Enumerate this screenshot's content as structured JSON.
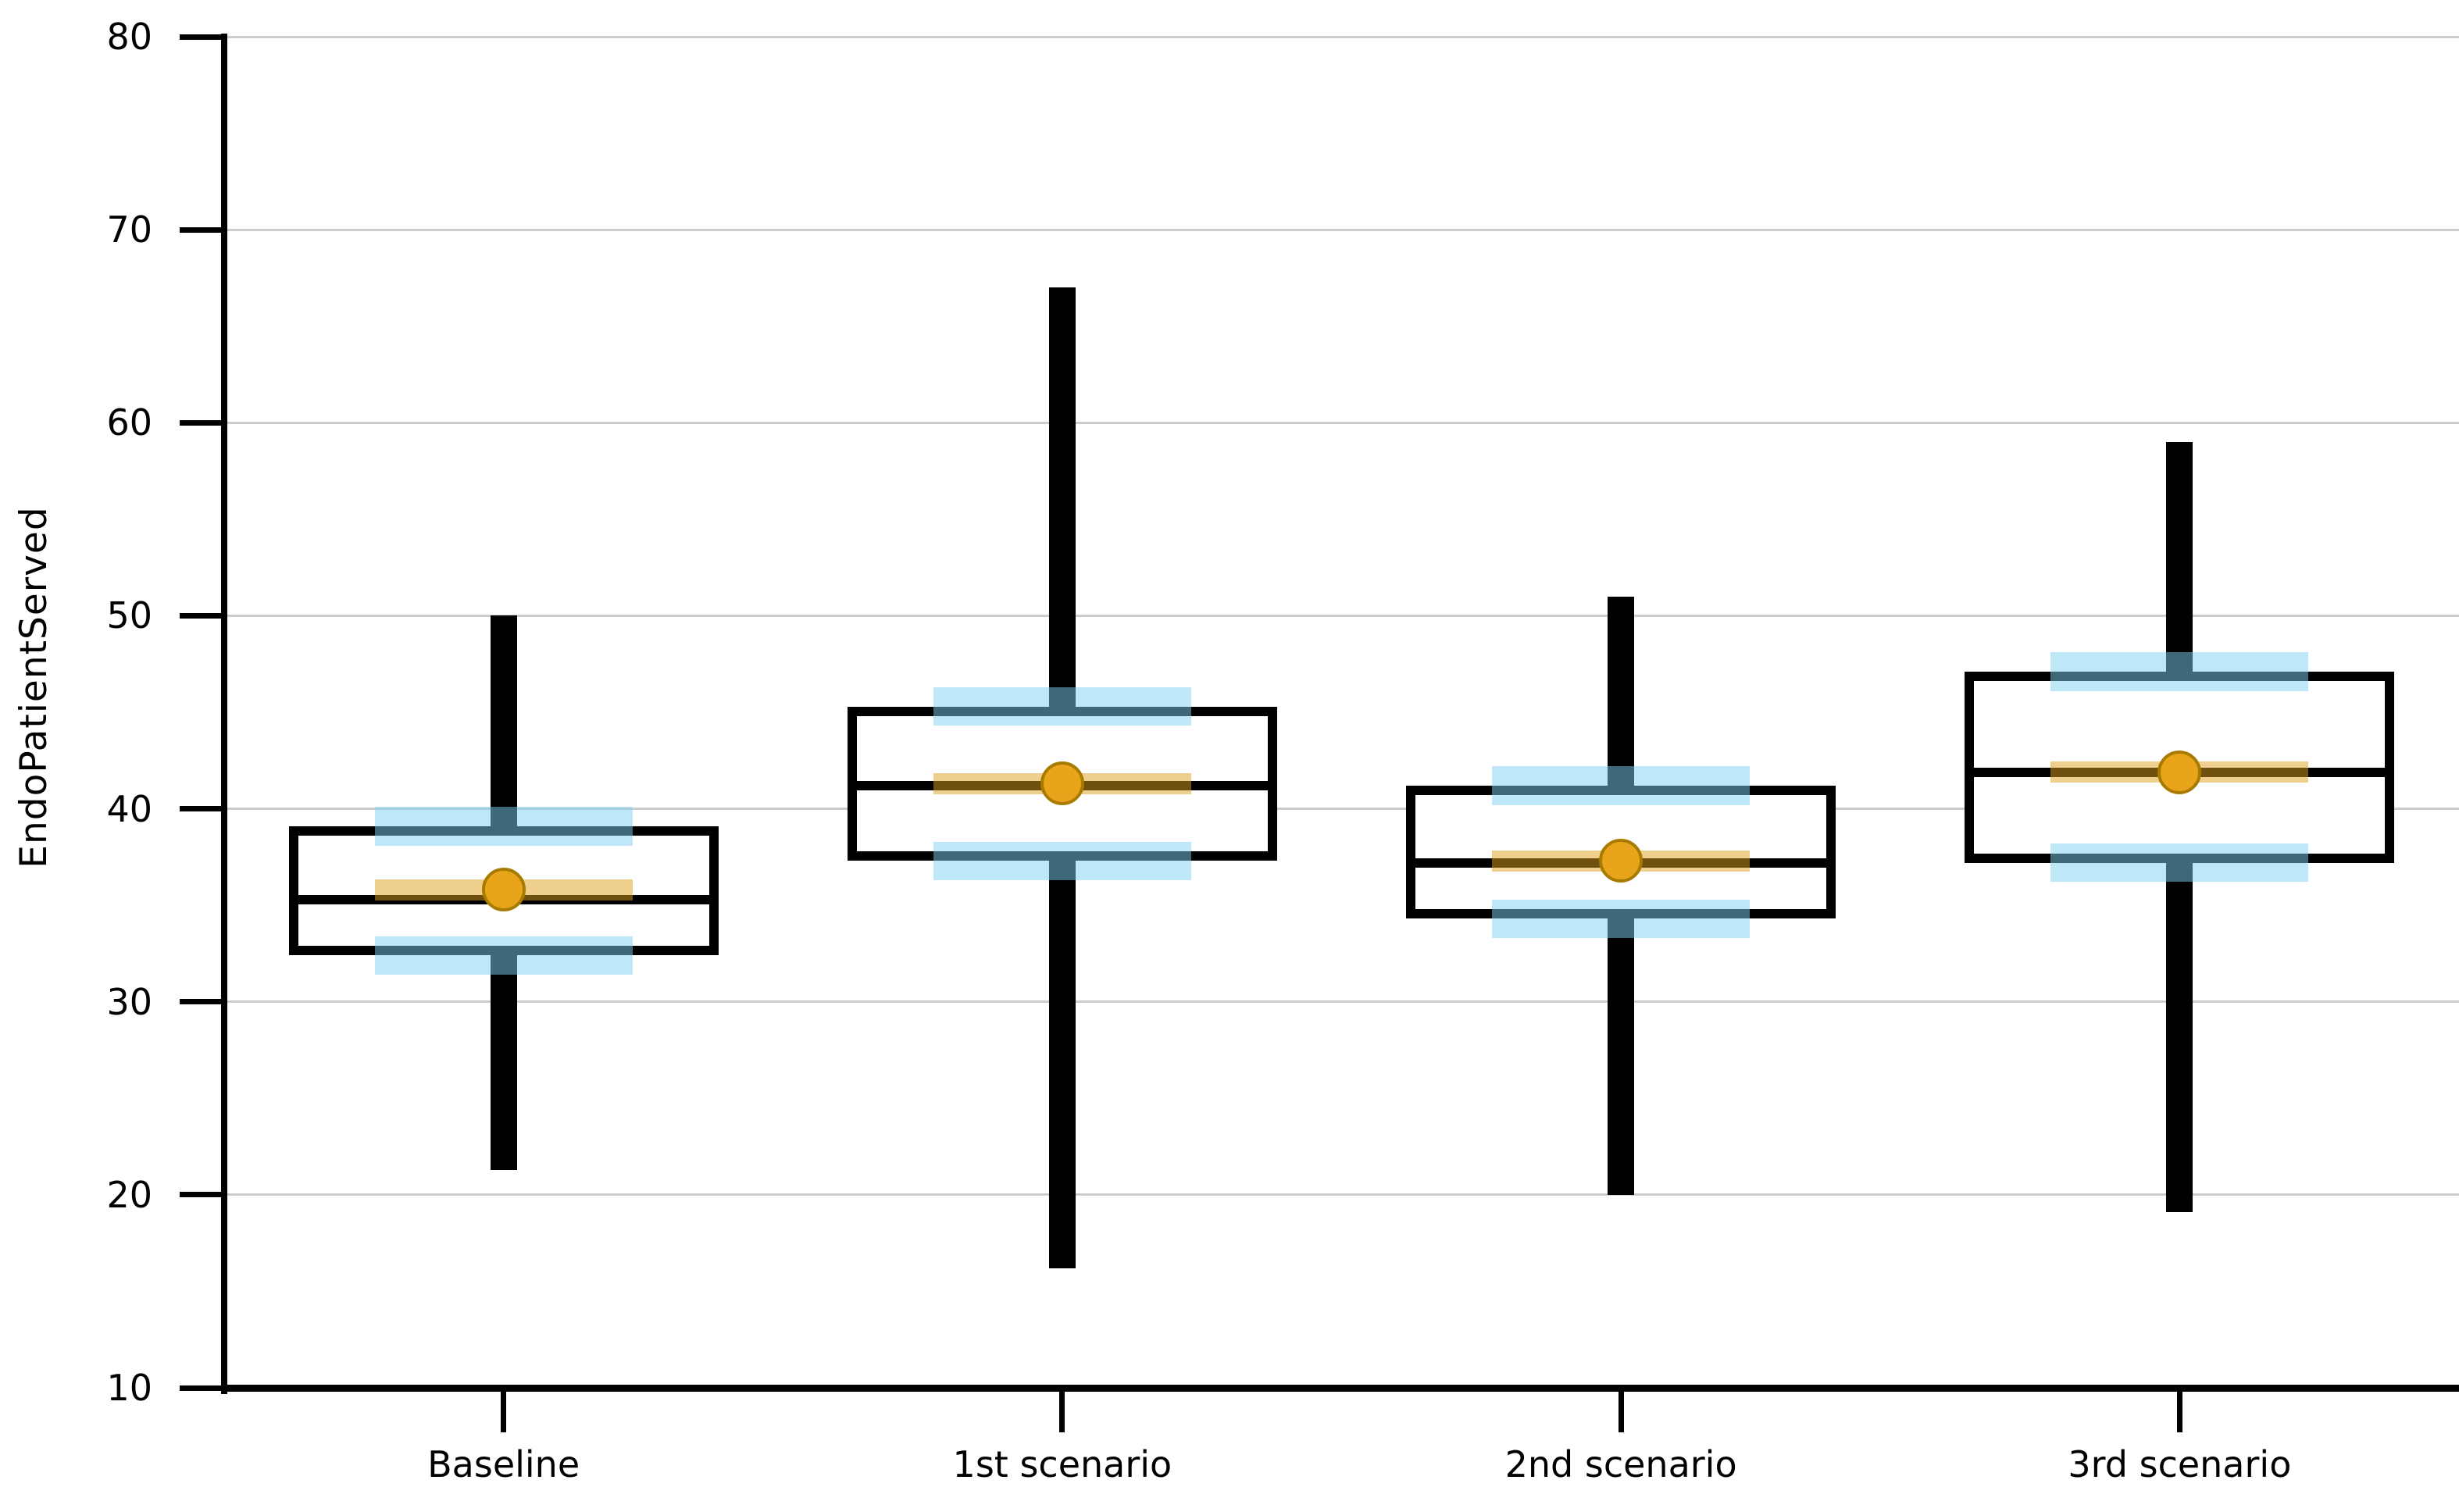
{
  "chart_data": {
    "type": "boxplot",
    "title": "",
    "ylabel": "EndoPatientServed",
    "xlabel": "",
    "ylim": [
      10,
      80
    ],
    "yticks": [
      10,
      20,
      30,
      40,
      50,
      60,
      70,
      80
    ],
    "grid": "horizontal-light-gray",
    "legend": "none",
    "categories": [
      "Baseline",
      "1st scenario",
      "2nd scenario",
      "3rd scenario"
    ],
    "series": [
      {
        "category": "Baseline",
        "whisker_low": 21.3,
        "q1": 32.4,
        "median": 35.3,
        "mean": 35.8,
        "q3": 39.1,
        "whisker_high": 50.0,
        "q1_ci": [
          31.4,
          33.4
        ],
        "q3_ci": [
          38.1,
          40.1
        ],
        "mean_ci": [
          35.25,
          36.35
        ]
      },
      {
        "category": "1st scenario",
        "whisker_low": 16.2,
        "q1": 37.3,
        "median": 41.2,
        "mean": 41.3,
        "q3": 45.3,
        "whisker_high": 67.0,
        "q1_ci": [
          36.3,
          38.3
        ],
        "q3_ci": [
          44.3,
          46.3
        ],
        "mean_ci": [
          40.75,
          41.85
        ]
      },
      {
        "category": "2nd scenario",
        "whisker_low": 20.0,
        "q1": 34.3,
        "median": 37.2,
        "mean": 37.3,
        "q3": 41.2,
        "whisker_high": 51.0,
        "q1_ci": [
          33.3,
          35.3
        ],
        "q3_ci": [
          40.2,
          42.2
        ],
        "mean_ci": [
          36.75,
          37.85
        ]
      },
      {
        "category": "3rd scenario",
        "whisker_low": 19.1,
        "q1": 37.2,
        "median": 41.9,
        "mean": 41.9,
        "q3": 47.1,
        "whisker_high": 59.0,
        "q1_ci": [
          36.2,
          38.2
        ],
        "q3_ci": [
          46.1,
          48.1
        ],
        "mean_ci": [
          41.35,
          42.45
        ]
      }
    ],
    "colors": {
      "box_stroke": "#000000",
      "whisker": "#000000",
      "median": "#000000",
      "quartile_ci_band": "rgba(125,210,240,0.5)",
      "mean_ci_band": "rgba(222,160,30,0.5)",
      "mean_marker_fill": "#E8A41A",
      "mean_marker_stroke": "#A87A00",
      "gridline": "#CDCDCD",
      "axis": "#000000",
      "background": "#FFFFFF"
    }
  }
}
